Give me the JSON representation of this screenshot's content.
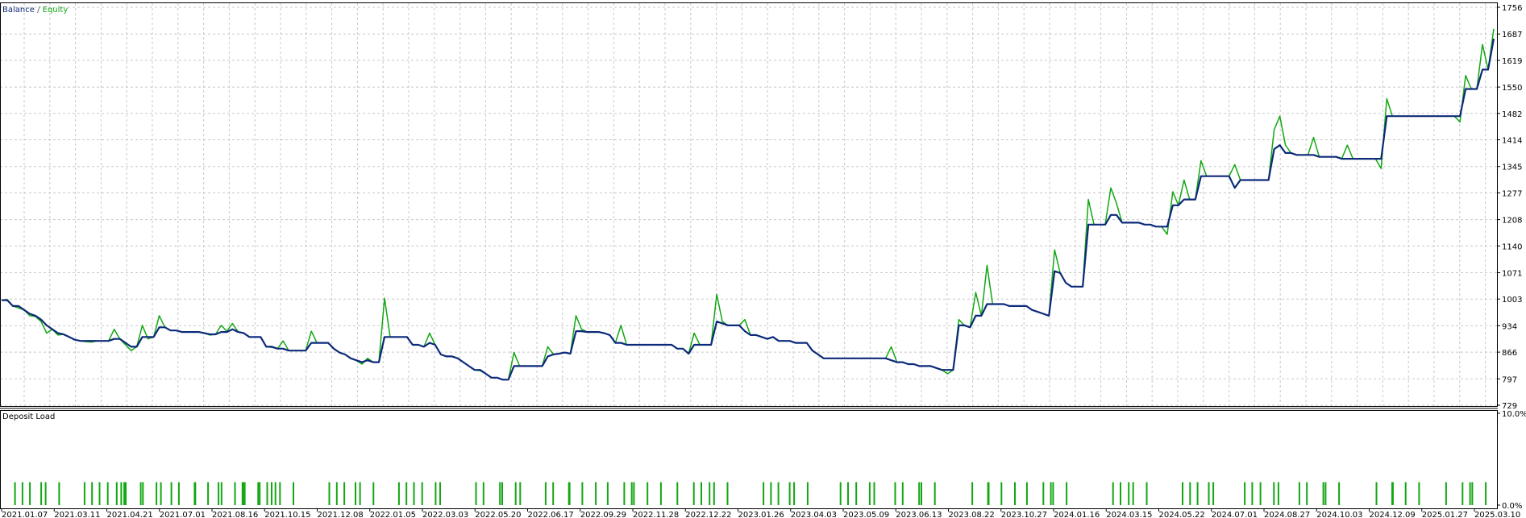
{
  "legend": {
    "balance": "Balance",
    "separator": " / ",
    "equity": "Equity"
  },
  "colors": {
    "balance": "#0c2a7a",
    "equity": "#12a712",
    "grid": "#c8c8c8",
    "frame": "#000000",
    "background": "#ffffff"
  },
  "chart_data": [
    {
      "type": "line",
      "title": "",
      "legend_position": "top-left",
      "grid": true,
      "y_ticks": [
        "1756",
        "1687",
        "1619",
        "1550",
        "1482",
        "1414",
        "1345",
        "1277",
        "1208",
        "1140",
        "1071",
        "1003",
        "934",
        "866",
        "797",
        "729"
      ],
      "ylim": [
        729,
        1756
      ],
      "x_ticks": [
        "2021.01.07",
        "2021.03.11",
        "2021.04.21",
        "2021.07.01",
        "2021.08.16",
        "2021.10.15",
        "2021.12.08",
        "2022.01.05",
        "2022.03.03",
        "2022.05.20",
        "2022.06.17",
        "2022.09.29",
        "2022.11.28",
        "2022.12.22",
        "2023.01.26",
        "2023.04.03",
        "2023.05.09",
        "2023.06.13",
        "2023.08.22",
        "2023.10.27",
        "2024.01.16",
        "2024.03.15",
        "2024.05.22",
        "2024.07.01",
        "2024.08.27",
        "2024.10.03",
        "2024.12.09",
        "2025.01.27",
        "2025.03.10"
      ],
      "series": [
        {
          "name": "Balance",
          "values": [
            1000,
            1000,
            985,
            985,
            975,
            965,
            960,
            950,
            935,
            925,
            915,
            912,
            905,
            898,
            895,
            895,
            895,
            895,
            895,
            895,
            900,
            900,
            890,
            880,
            880,
            905,
            905,
            905,
            930,
            930,
            922,
            922,
            918,
            918,
            918,
            918,
            915,
            912,
            912,
            918,
            918,
            925,
            918,
            915,
            905,
            905,
            905,
            880,
            880,
            875,
            875,
            870,
            870,
            870,
            870,
            890,
            890,
            890,
            890,
            875,
            865,
            860,
            850,
            845,
            840,
            845,
            840,
            840,
            905,
            905,
            905,
            905,
            905,
            885,
            885,
            880,
            890,
            885,
            860,
            855,
            855,
            850,
            840,
            830,
            820,
            820,
            810,
            800,
            800,
            795,
            795,
            830,
            830,
            830,
            830,
            830,
            830,
            855,
            860,
            862,
            865,
            862,
            920,
            920,
            918,
            918,
            918,
            915,
            910,
            890,
            890,
            885,
            885,
            885,
            885,
            885,
            885,
            885,
            885,
            885,
            875,
            875,
            862,
            885,
            885,
            885,
            885,
            945,
            940,
            935,
            935,
            935,
            920,
            910,
            910,
            905,
            900,
            905,
            895,
            895,
            895,
            890,
            890,
            890,
            870,
            860,
            850,
            850,
            850,
            850,
            850,
            850,
            850,
            850,
            850,
            850,
            850,
            850,
            845,
            840,
            840,
            835,
            835,
            830,
            830,
            830,
            825,
            820,
            820,
            820,
            935,
            935,
            930,
            960,
            960,
            990,
            990,
            990,
            990,
            985,
            985,
            985,
            985,
            975,
            970,
            965,
            960,
            1075,
            1070,
            1045,
            1035,
            1035,
            1035,
            1195,
            1195,
            1195,
            1195,
            1220,
            1220,
            1200,
            1200,
            1200,
            1200,
            1195,
            1195,
            1190,
            1190,
            1190,
            1245,
            1245,
            1260,
            1260,
            1260,
            1320,
            1320,
            1320,
            1320,
            1320,
            1320,
            1290,
            1310,
            1310,
            1310,
            1310,
            1310,
            1310,
            1390,
            1400,
            1380,
            1380,
            1375,
            1375,
            1375,
            1375,
            1370,
            1370,
            1370,
            1370,
            1365,
            1365,
            1365,
            1365,
            1365,
            1365,
            1365,
            1365,
            1475,
            1475,
            1475,
            1475,
            1475,
            1475,
            1475,
            1475,
            1475,
            1475,
            1475,
            1475,
            1475,
            1475,
            1545,
            1545,
            1545,
            1595,
            1595,
            1675
          ]
        },
        {
          "name": "Equity",
          "values": [
            1000,
            1002,
            985,
            980,
            975,
            960,
            958,
            945,
            915,
            925,
            910,
            912,
            905,
            898,
            895,
            893,
            892,
            895,
            895,
            895,
            925,
            900,
            885,
            870,
            880,
            935,
            900,
            905,
            960,
            930,
            922,
            922,
            918,
            918,
            918,
            918,
            915,
            910,
            912,
            935,
            920,
            940,
            918,
            915,
            905,
            905,
            905,
            880,
            878,
            875,
            895,
            870,
            870,
            870,
            870,
            920,
            890,
            890,
            890,
            875,
            865,
            860,
            850,
            845,
            835,
            850,
            840,
            840,
            1005,
            905,
            905,
            905,
            905,
            885,
            885,
            880,
            915,
            885,
            860,
            855,
            855,
            850,
            840,
            830,
            820,
            818,
            810,
            800,
            800,
            795,
            795,
            865,
            830,
            830,
            830,
            830,
            830,
            880,
            860,
            862,
            865,
            862,
            960,
            925,
            918,
            918,
            918,
            915,
            910,
            890,
            935,
            885,
            885,
            885,
            885,
            885,
            885,
            885,
            885,
            885,
            875,
            875,
            862,
            915,
            885,
            885,
            885,
            1015,
            945,
            935,
            935,
            935,
            950,
            910,
            910,
            905,
            900,
            905,
            895,
            895,
            895,
            890,
            890,
            890,
            870,
            860,
            850,
            850,
            850,
            850,
            850,
            850,
            850,
            850,
            850,
            850,
            850,
            850,
            880,
            840,
            840,
            835,
            835,
            830,
            830,
            830,
            825,
            820,
            810,
            820,
            950,
            935,
            930,
            1020,
            960,
            1090,
            990,
            990,
            990,
            985,
            985,
            985,
            985,
            975,
            970,
            965,
            960,
            1130,
            1070,
            1045,
            1035,
            1035,
            1035,
            1260,
            1195,
            1195,
            1195,
            1290,
            1250,
            1200,
            1200,
            1200,
            1200,
            1195,
            1195,
            1190,
            1190,
            1170,
            1280,
            1245,
            1310,
            1260,
            1260,
            1360,
            1320,
            1320,
            1320,
            1320,
            1320,
            1350,
            1310,
            1310,
            1310,
            1310,
            1310,
            1310,
            1440,
            1475,
            1400,
            1380,
            1375,
            1375,
            1375,
            1420,
            1370,
            1370,
            1370,
            1370,
            1365,
            1400,
            1365,
            1365,
            1365,
            1365,
            1365,
            1340,
            1520,
            1475,
            1475,
            1475,
            1475,
            1475,
            1475,
            1475,
            1475,
            1475,
            1475,
            1475,
            1475,
            1460,
            1580,
            1545,
            1545,
            1660,
            1595,
            1700
          ]
        }
      ]
    },
    {
      "type": "bar",
      "title": "Deposit Load",
      "y_ticks": [
        "10.0%",
        "0.0%"
      ],
      "ylim": [
        0,
        10
      ],
      "bar_values_percent": [
        2.5,
        2.5,
        2.5,
        2.5,
        2.5,
        2.5,
        2.5,
        2.5,
        2.5,
        2.5,
        2.5,
        2.5,
        2.5,
        2.5,
        2.5,
        2.5,
        2.5,
        2.5,
        2.5,
        2.5,
        2.5,
        2.5,
        2.5,
        2.5,
        2.5,
        2.5,
        2.5,
        2.5,
        2.5,
        2.5,
        2.5,
        2.5,
        2.5,
        2.5,
        2.5,
        2.5,
        2.5,
        2.5,
        2.5,
        2.5,
        2.5,
        2.5,
        2.5,
        2.5,
        2.5,
        2.5,
        2.5,
        2.5,
        2.5,
        2.5,
        2.5,
        2.5,
        2.5,
        2.5,
        2.5,
        2.5,
        2.5,
        2.5,
        2.5,
        2.5,
        2.5,
        2.5,
        2.5,
        2.5,
        2.5,
        2.5,
        2.5,
        2.5,
        2.5,
        2.5,
        2.5,
        2.5,
        2.5,
        2.5,
        2.5,
        2.5,
        2.5,
        2.5,
        2.5,
        2.5,
        2.5,
        2.5,
        2.5,
        2.5,
        2.5,
        2.5,
        2.5,
        2.5,
        2.5,
        2.5,
        2.5,
        2.5,
        2.5,
        2.5,
        2.5,
        2.5,
        2.5,
        2.5,
        2.5,
        2.5,
        2.5,
        2.5,
        2.5,
        2.5,
        2.5,
        2.5,
        2.5,
        2.5,
        2.5,
        2.5,
        2.5,
        2.5,
        2.5,
        2.5,
        2.5,
        2.5,
        2.5,
        2.5,
        2.5,
        2.5,
        2.5,
        2.5,
        2.5,
        2.5,
        2.5,
        2.5,
        2.5,
        2.5
      ]
    }
  ]
}
